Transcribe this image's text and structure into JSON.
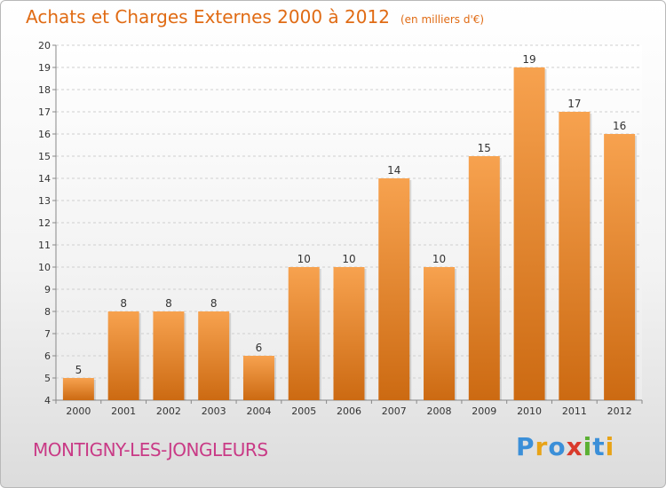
{
  "header": {
    "title": "Achats et Charges Externes 2000 à 2012",
    "unit": "(en milliers d'€)"
  },
  "footer": {
    "commune": "MONTIGNY-LES-JONGLEURS",
    "logo_letters": [
      {
        "char": "P",
        "color": "#3b8fd8"
      },
      {
        "char": "r",
        "color": "#e8a317"
      },
      {
        "char": "o",
        "color": "#3b8fd8"
      },
      {
        "char": "x",
        "color": "#d93a2b"
      },
      {
        "char": "i",
        "color": "#5bb033"
      },
      {
        "char": "t",
        "color": "#3b8fd8"
      },
      {
        "char": "i",
        "color": "#e8a317"
      }
    ]
  },
  "chart_data": {
    "type": "bar",
    "title": "Achats et Charges Externes 2000 à 2012",
    "subtitle": "(en milliers d'€)",
    "categories": [
      "2000",
      "2001",
      "2002",
      "2003",
      "2004",
      "2005",
      "2006",
      "2007",
      "2008",
      "2009",
      "2010",
      "2011",
      "2012"
    ],
    "values": [
      5,
      8,
      8,
      8,
      6,
      10,
      10,
      14,
      10,
      15,
      19,
      17,
      16
    ],
    "ylim": [
      4,
      20
    ],
    "yticks": [
      4,
      5,
      6,
      7,
      8,
      9,
      10,
      11,
      12,
      13,
      14,
      15,
      16,
      17,
      18,
      19,
      20
    ],
    "grid": true,
    "bar_color_top": "#f7a24f",
    "bar_color_bottom": "#cc6a12"
  }
}
